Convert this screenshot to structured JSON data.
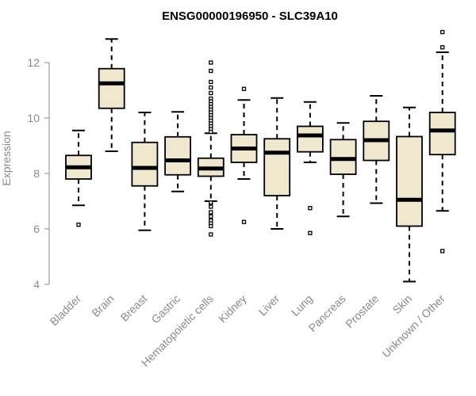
{
  "chart_data": {
    "type": "box",
    "title": "ENSG00000196950 - SLC39A10",
    "ylabel": "Expression",
    "xlabel": "",
    "ylim": [
      4,
      13.2
    ],
    "yticks": [
      4,
      6,
      8,
      10,
      12
    ],
    "box_fill": "#efe8cf",
    "categories": [
      "Bladder",
      "Brain",
      "Breast",
      "Gastric",
      "Hematopoietic cells",
      "Kidney",
      "Liver",
      "Lung",
      "Pancreas",
      "Prostate",
      "Skin",
      "Unknown / Other"
    ],
    "boxes": [
      {
        "whisker_low": 6.85,
        "q1": 7.8,
        "median": 8.22,
        "q3": 8.65,
        "whisker_high": 9.55,
        "outliers": [
          6.15
        ]
      },
      {
        "whisker_low": 8.8,
        "q1": 10.35,
        "median": 11.25,
        "q3": 11.78,
        "whisker_high": 12.85,
        "outliers": []
      },
      {
        "whisker_low": 5.95,
        "q1": 7.55,
        "median": 8.2,
        "q3": 9.12,
        "whisker_high": 10.2,
        "outliers": []
      },
      {
        "whisker_low": 7.35,
        "q1": 7.95,
        "median": 8.47,
        "q3": 9.32,
        "whisker_high": 10.22,
        "outliers": []
      },
      {
        "whisker_low": 7.0,
        "q1": 7.9,
        "median": 8.18,
        "q3": 8.55,
        "whisker_high": 9.45,
        "outliers": [
          12.0,
          11.7,
          11.3,
          11.1,
          10.9,
          10.7,
          10.6,
          10.5,
          10.4,
          10.3,
          10.2,
          10.1,
          10.0,
          9.9,
          9.8,
          9.7,
          9.6,
          9.5,
          6.95,
          6.8,
          6.6,
          6.45,
          6.3,
          6.2,
          6.1,
          5.8
        ]
      },
      {
        "whisker_low": 7.8,
        "q1": 8.4,
        "median": 8.9,
        "q3": 9.4,
        "whisker_high": 10.65,
        "outliers": [
          11.05,
          6.25
        ]
      },
      {
        "whisker_low": 6.0,
        "q1": 7.2,
        "median": 8.75,
        "q3": 9.25,
        "whisker_high": 10.72,
        "outliers": []
      },
      {
        "whisker_low": 8.4,
        "q1": 8.78,
        "median": 9.37,
        "q3": 9.7,
        "whisker_high": 10.58,
        "outliers": [
          6.75,
          5.85
        ]
      },
      {
        "whisker_low": 6.45,
        "q1": 7.97,
        "median": 8.52,
        "q3": 9.22,
        "whisker_high": 9.82,
        "outliers": []
      },
      {
        "whisker_low": 6.93,
        "q1": 8.47,
        "median": 9.2,
        "q3": 9.88,
        "whisker_high": 10.8,
        "outliers": []
      },
      {
        "whisker_low": 4.1,
        "q1": 6.1,
        "median": 7.05,
        "q3": 9.33,
        "whisker_high": 10.38,
        "outliers": []
      },
      {
        "whisker_low": 6.65,
        "q1": 8.68,
        "median": 9.55,
        "q3": 10.2,
        "whisker_high": 12.37,
        "outliers": [
          13.1,
          12.55,
          5.2
        ]
      }
    ]
  }
}
